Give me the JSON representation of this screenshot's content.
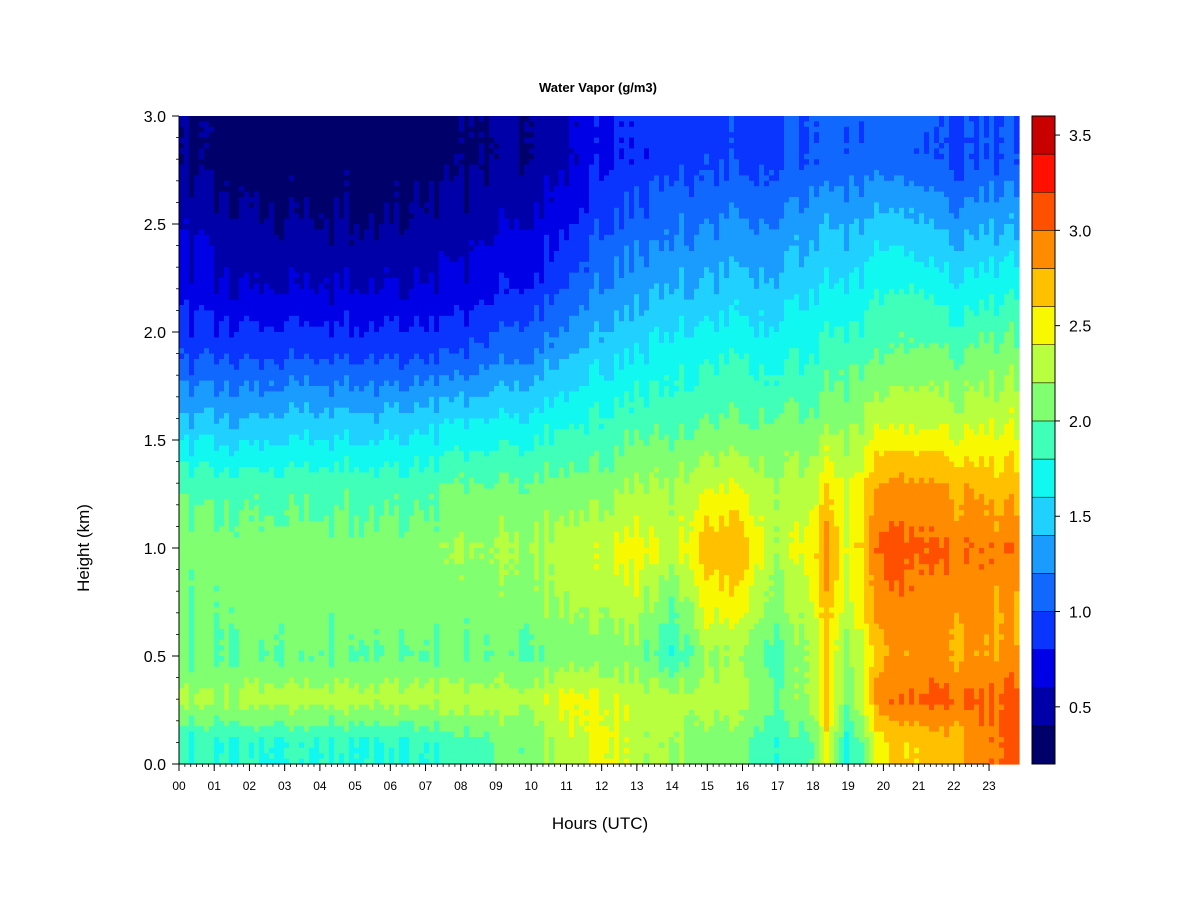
{
  "chart_data": {
    "type": "heatmap",
    "title": "Water Vapor (g/m3)",
    "xlabel": "Hours (UTC)",
    "ylabel": "Height (km)",
    "x_tick_labels": [
      "00",
      "01",
      "02",
      "03",
      "04",
      "05",
      "06",
      "07",
      "08",
      "09",
      "10",
      "11",
      "12",
      "13",
      "14",
      "15",
      "16",
      "17",
      "18",
      "19",
      "20",
      "21",
      "22",
      "23"
    ],
    "y_tick_labels": [
      "0.0",
      "0.5",
      "1.0",
      "1.5",
      "2.0",
      "2.5",
      "3.0"
    ],
    "xlim": [
      0,
      23.85
    ],
    "ylim": [
      0.0,
      3.0
    ],
    "colorbar": {
      "tick_labels": [
        "0.5",
        "1.0",
        "1.5",
        "2.0",
        "2.5",
        "3.0",
        "3.5"
      ],
      "ticks": [
        0.5,
        1.0,
        1.5,
        2.0,
        2.5,
        3.0,
        3.5
      ],
      "range": [
        0.2,
        3.6
      ],
      "levels": [
        0.2,
        0.4,
        0.6,
        0.8,
        1.0,
        1.2,
        1.4,
        1.6,
        1.8,
        2.0,
        2.2,
        2.4,
        2.6,
        2.8,
        3.0,
        3.2,
        3.4,
        3.6
      ],
      "colors": [
        "#00006b",
        "#0000a8",
        "#0000e6",
        "#0a34ff",
        "#1068ff",
        "#1a9cff",
        "#20d0ff",
        "#10f8f0",
        "#40ffb8",
        "#80ff70",
        "#b8ff40",
        "#f8f800",
        "#ffc000",
        "#ff8c00",
        "#ff5000",
        "#ff1000",
        "#c80000",
        "#800000"
      ]
    },
    "heights": [
      0.1,
      0.3,
      0.5,
      0.75,
      1.0,
      1.3,
      1.6,
      1.9,
      2.2,
      2.5,
      2.8
    ],
    "hours": [
      0,
      1,
      2,
      3,
      4,
      5,
      6,
      7,
      8,
      9,
      10,
      11,
      12,
      13,
      14,
      15,
      16,
      17,
      18,
      18.4,
      19,
      20,
      21,
      22,
      23,
      23.85
    ],
    "values": [
      [
        1.8,
        1.8,
        1.8,
        1.8,
        1.8,
        1.8,
        1.8,
        1.8,
        1.9,
        2.0,
        2.1,
        2.3,
        2.5,
        2.3,
        2.2,
        2.1,
        2.1,
        1.8,
        2.0,
        2.5,
        1.7,
        2.6,
        2.6,
        2.7,
        2.9,
        3.2
      ],
      [
        2.2,
        2.2,
        2.3,
        2.3,
        2.3,
        2.3,
        2.3,
        2.3,
        2.3,
        2.3,
        2.3,
        2.45,
        2.45,
        2.3,
        2.3,
        2.3,
        2.3,
        2.0,
        2.3,
        2.7,
        2.0,
        3.0,
        3.0,
        3.05,
        3.0,
        3.1
      ],
      [
        2.0,
        2.0,
        2.0,
        2.0,
        2.0,
        2.0,
        2.0,
        2.0,
        2.0,
        2.0,
        2.0,
        2.1,
        2.1,
        2.1,
        1.8,
        2.2,
        2.2,
        1.9,
        2.3,
        2.6,
        2.1,
        2.8,
        2.8,
        2.8,
        2.8,
        2.9
      ],
      [
        2.05,
        2.05,
        2.1,
        2.1,
        2.1,
        2.1,
        2.1,
        2.1,
        2.1,
        2.1,
        2.15,
        2.2,
        2.3,
        2.3,
        2.0,
        2.5,
        2.5,
        2.1,
        2.4,
        2.75,
        2.3,
        2.95,
        2.9,
        2.9,
        2.85,
        2.8
      ],
      [
        2.1,
        2.1,
        2.1,
        2.1,
        2.1,
        2.1,
        2.1,
        2.1,
        2.2,
        2.2,
        2.25,
        2.3,
        2.4,
        2.5,
        2.3,
        2.75,
        2.75,
        2.2,
        2.6,
        2.9,
        2.4,
        3.1,
        3.0,
        3.0,
        2.95,
        3.0
      ],
      [
        1.9,
        1.9,
        1.9,
        1.9,
        1.9,
        1.9,
        1.9,
        1.9,
        2.0,
        2.0,
        2.05,
        2.05,
        2.1,
        2.2,
        2.2,
        2.35,
        2.4,
        2.2,
        2.3,
        2.6,
        2.3,
        2.85,
        2.8,
        2.75,
        2.7,
        2.7
      ],
      [
        1.4,
        1.4,
        1.4,
        1.45,
        1.45,
        1.45,
        1.45,
        1.5,
        1.55,
        1.6,
        1.65,
        1.75,
        1.85,
        1.9,
        1.9,
        2.0,
        2.0,
        2.0,
        2.05,
        2.15,
        2.1,
        2.35,
        2.3,
        2.3,
        2.3,
        2.4
      ],
      [
        0.95,
        0.95,
        0.95,
        0.95,
        0.95,
        0.95,
        0.95,
        0.95,
        1.0,
        1.1,
        1.2,
        1.35,
        1.55,
        1.6,
        1.7,
        1.75,
        1.8,
        1.7,
        1.8,
        1.9,
        1.9,
        2.0,
        2.0,
        2.0,
        2.05,
        2.1
      ],
      [
        0.7,
        0.65,
        0.6,
        0.6,
        0.6,
        0.6,
        0.6,
        0.6,
        0.65,
        0.75,
        0.85,
        1.0,
        1.25,
        1.3,
        1.4,
        1.45,
        1.5,
        1.45,
        1.6,
        1.65,
        1.6,
        1.8,
        1.75,
        1.65,
        1.7,
        1.8
      ],
      [
        0.55,
        0.5,
        0.45,
        0.4,
        0.4,
        0.4,
        0.4,
        0.45,
        0.5,
        0.55,
        0.65,
        0.75,
        1.0,
        1.05,
        1.15,
        1.2,
        1.25,
        1.2,
        1.35,
        1.4,
        1.35,
        1.5,
        1.4,
        1.3,
        1.35,
        1.4
      ],
      [
        0.35,
        0.32,
        0.3,
        0.3,
        0.3,
        0.3,
        0.3,
        0.3,
        0.35,
        0.4,
        0.45,
        0.55,
        0.8,
        0.85,
        0.9,
        0.95,
        0.95,
        0.95,
        1.05,
        1.1,
        1.05,
        1.1,
        1.0,
        0.95,
        1.0,
        1.05
      ]
    ]
  }
}
